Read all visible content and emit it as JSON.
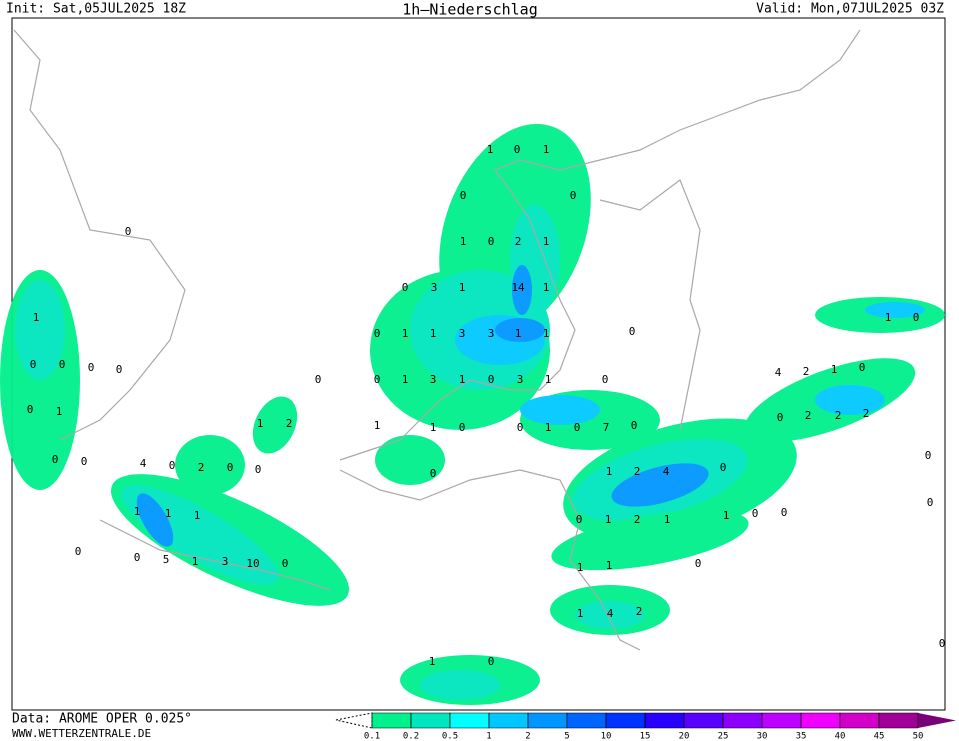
{
  "header": {
    "init": "Init: Sat,05JUL2025 18Z",
    "title": "1h–Niederschlag",
    "valid": "Valid: Mon,07JUL2025 03Z"
  },
  "footer": {
    "data_source": "Data: AROME OPER 0.025°",
    "website": "WWW.WETTERZENTRALE.DE"
  },
  "legend": {
    "levels": [
      0.1,
      0.2,
      0.5,
      1,
      2,
      5,
      10,
      15,
      20,
      25,
      30,
      35,
      40,
      45,
      50
    ],
    "colors": [
      "#00f08c",
      "#00e6be",
      "#00ffff",
      "#00c8ff",
      "#0096ff",
      "#0064ff",
      "#0032ff",
      "#2800ff",
      "#5a00ff",
      "#8c00ff",
      "#be00ff",
      "#f000ff",
      "#d200c8",
      "#a00096",
      "#780078"
    ]
  },
  "map_labels": [
    1,
    0,
    1,
    0,
    0,
    0,
    1,
    0,
    2,
    1,
    0,
    3,
    1,
    14,
    1,
    1,
    0,
    1,
    1,
    3,
    3,
    1,
    1,
    0,
    1,
    0,
    0,
    0,
    0,
    0,
    0,
    0,
    1,
    3,
    1,
    0,
    3,
    1,
    0,
    4,
    2,
    1,
    0,
    0,
    1,
    0,
    2,
    2,
    2,
    1,
    2,
    1,
    1,
    0,
    0,
    1,
    0,
    7,
    0,
    0,
    0,
    4,
    0,
    2,
    0,
    0,
    0,
    1,
    2,
    4,
    0,
    0,
    1,
    1,
    1,
    0,
    1,
    2,
    1,
    1,
    0,
    0,
    0,
    0,
    0,
    5,
    1,
    3,
    10,
    0,
    1,
    1,
    0,
    1,
    4,
    2,
    1,
    0,
    0
  ]
}
